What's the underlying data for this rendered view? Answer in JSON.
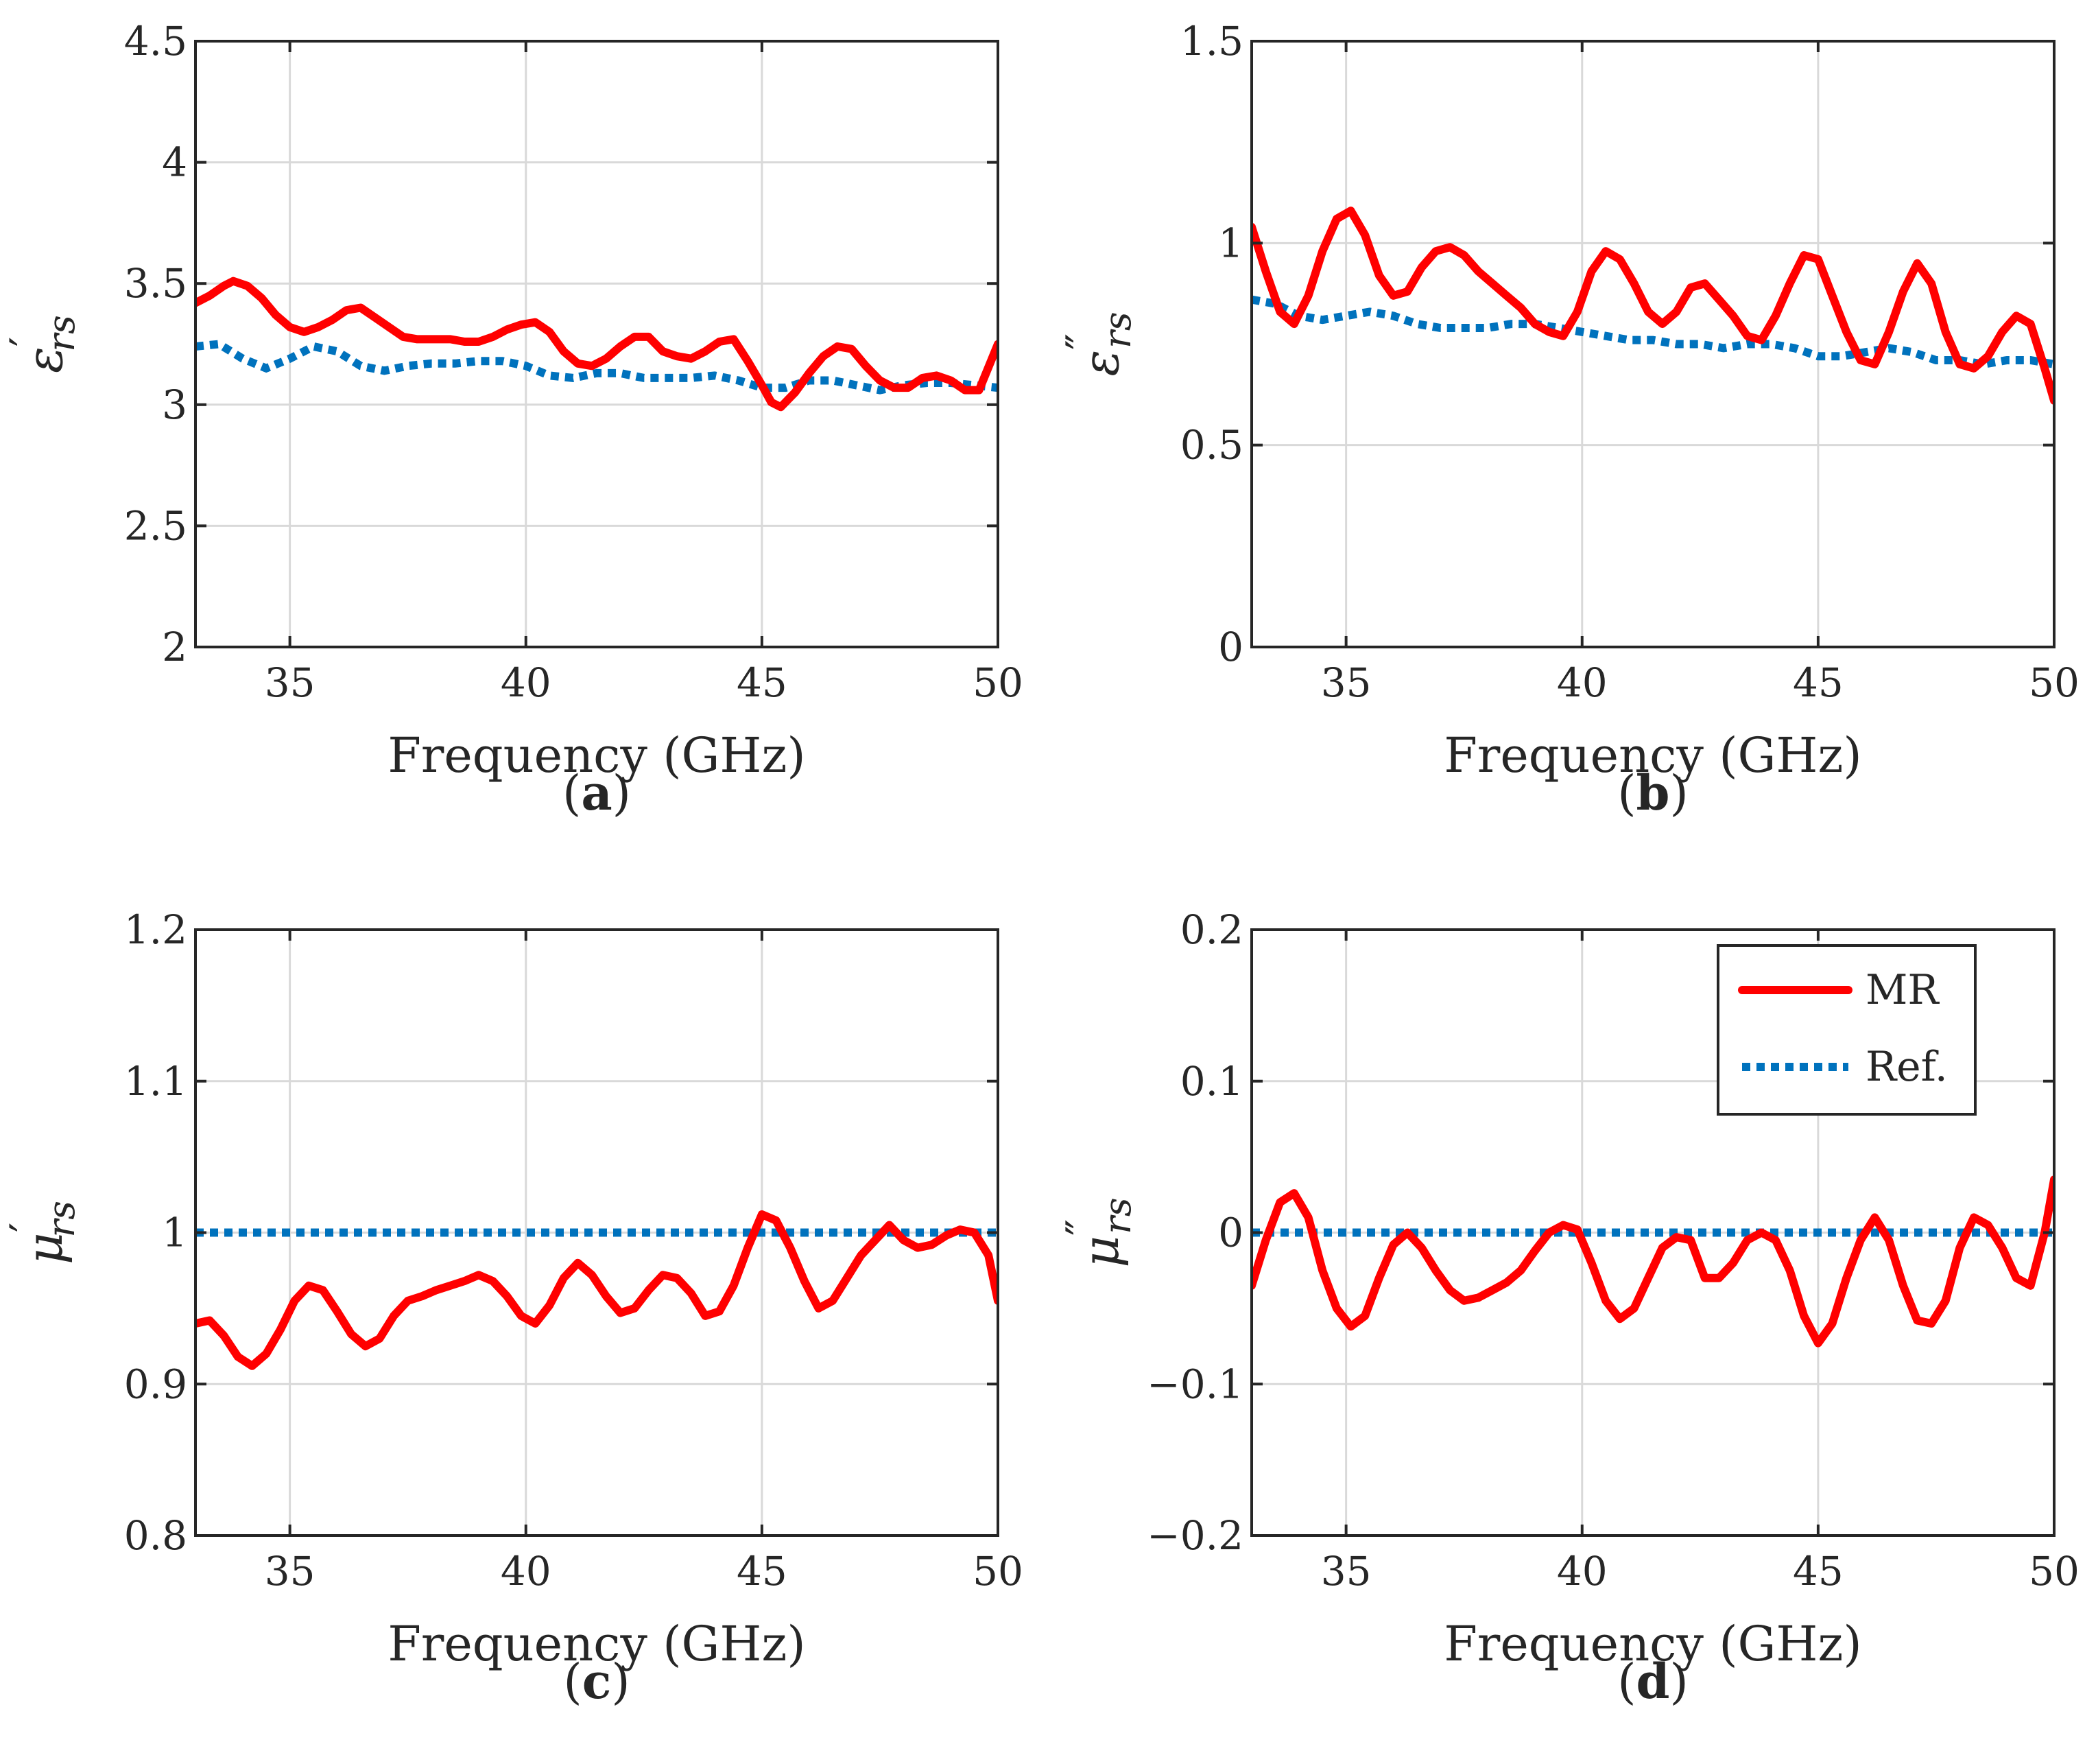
{
  "chart_data": [
    {
      "id": "a",
      "type": "line",
      "panel_label": "a",
      "xlabel": "Frequency (GHz)",
      "ylabel_symbol": "ε",
      "ylabel_prime": "′",
      "ylabel_sub": "rs",
      "xlim": [
        33,
        50
      ],
      "ylim": [
        2,
        4.5
      ],
      "xticks": [
        35,
        40,
        45,
        50
      ],
      "yticks": [
        2,
        2.5,
        3,
        3.5,
        4,
        4.5
      ],
      "ytick_labels": [
        "2",
        "2.5",
        "3",
        "3.5",
        "4",
        "4.5"
      ],
      "grid": true,
      "series": [
        {
          "name": "MR",
          "x": [
            33.0,
            33.3,
            33.6,
            33.8,
            34.1,
            34.4,
            34.7,
            35.0,
            35.3,
            35.6,
            35.9,
            36.2,
            36.5,
            36.8,
            37.1,
            37.4,
            37.7,
            38.0,
            38.4,
            38.7,
            39.0,
            39.3,
            39.6,
            39.9,
            40.2,
            40.5,
            40.8,
            41.1,
            41.4,
            41.7,
            42.0,
            42.3,
            42.6,
            42.9,
            43.2,
            43.5,
            43.8,
            44.1,
            44.4,
            44.7,
            45.0,
            45.2,
            45.4,
            45.7,
            46.0,
            46.3,
            46.6,
            46.9,
            47.2,
            47.5,
            47.8,
            48.1,
            48.4,
            48.7,
            49.0,
            49.3,
            49.6,
            50.0
          ],
          "y": [
            3.42,
            3.45,
            3.49,
            3.51,
            3.49,
            3.44,
            3.37,
            3.32,
            3.3,
            3.32,
            3.35,
            3.39,
            3.4,
            3.36,
            3.32,
            3.28,
            3.27,
            3.27,
            3.27,
            3.26,
            3.26,
            3.28,
            3.31,
            3.33,
            3.34,
            3.3,
            3.22,
            3.17,
            3.16,
            3.19,
            3.24,
            3.28,
            3.28,
            3.22,
            3.2,
            3.19,
            3.22,
            3.26,
            3.27,
            3.18,
            3.08,
            3.01,
            2.99,
            3.05,
            3.13,
            3.2,
            3.24,
            3.23,
            3.16,
            3.1,
            3.07,
            3.07,
            3.11,
            3.12,
            3.1,
            3.06,
            3.06,
            3.25
          ]
        },
        {
          "name": "Ref.",
          "x": [
            33.0,
            33.5,
            34.0,
            34.5,
            35.0,
            35.5,
            36.0,
            36.5,
            37.0,
            37.5,
            38.0,
            38.5,
            39.0,
            39.5,
            40.0,
            40.5,
            41.0,
            41.5,
            42.0,
            42.5,
            43.0,
            43.5,
            44.0,
            44.5,
            45.0,
            45.5,
            46.0,
            46.5,
            47.0,
            47.5,
            48.0,
            48.5,
            49.0,
            49.5,
            50.0
          ],
          "y": [
            3.24,
            3.25,
            3.19,
            3.15,
            3.19,
            3.24,
            3.22,
            3.16,
            3.14,
            3.16,
            3.17,
            3.17,
            3.18,
            3.18,
            3.16,
            3.12,
            3.11,
            3.13,
            3.13,
            3.11,
            3.11,
            3.11,
            3.12,
            3.1,
            3.07,
            3.07,
            3.1,
            3.1,
            3.08,
            3.06,
            3.08,
            3.09,
            3.09,
            3.08,
            3.07
          ]
        }
      ]
    },
    {
      "id": "b",
      "type": "line",
      "panel_label": "b",
      "xlabel": "Frequency (GHz)",
      "ylabel_symbol": "ε",
      "ylabel_prime": "″",
      "ylabel_sub": "rs",
      "xlim": [
        33,
        50
      ],
      "ylim": [
        0,
        1.5
      ],
      "xticks": [
        35,
        40,
        45,
        50
      ],
      "yticks": [
        0,
        0.5,
        1,
        1.5
      ],
      "ytick_labels": [
        "0",
        "0.5",
        "1",
        "1.5"
      ],
      "grid": true,
      "series": [
        {
          "name": "MR",
          "x": [
            33.0,
            33.3,
            33.6,
            33.9,
            34.2,
            34.5,
            34.8,
            35.1,
            35.4,
            35.7,
            36.0,
            36.3,
            36.6,
            36.9,
            37.2,
            37.5,
            37.8,
            38.1,
            38.4,
            38.7,
            39.0,
            39.3,
            39.6,
            39.9,
            40.2,
            40.5,
            40.8,
            41.1,
            41.4,
            41.7,
            42.0,
            42.3,
            42.6,
            42.9,
            43.2,
            43.5,
            43.8,
            44.1,
            44.4,
            44.7,
            45.0,
            45.3,
            45.6,
            45.9,
            46.2,
            46.5,
            46.8,
            47.1,
            47.4,
            47.7,
            48.0,
            48.3,
            48.6,
            48.9,
            49.2,
            49.5,
            49.8,
            50.0
          ],
          "y": [
            1.04,
            0.93,
            0.83,
            0.8,
            0.87,
            0.98,
            1.06,
            1.08,
            1.02,
            0.92,
            0.87,
            0.88,
            0.94,
            0.98,
            0.99,
            0.97,
            0.93,
            0.9,
            0.87,
            0.84,
            0.8,
            0.78,
            0.77,
            0.83,
            0.93,
            0.98,
            0.96,
            0.9,
            0.83,
            0.8,
            0.83,
            0.89,
            0.9,
            0.86,
            0.82,
            0.77,
            0.76,
            0.82,
            0.9,
            0.97,
            0.96,
            0.87,
            0.78,
            0.71,
            0.7,
            0.78,
            0.88,
            0.95,
            0.9,
            0.78,
            0.7,
            0.69,
            0.72,
            0.78,
            0.82,
            0.8,
            0.69,
            0.61
          ]
        },
        {
          "name": "Ref.",
          "x": [
            33.0,
            33.5,
            34.0,
            34.5,
            35.0,
            35.5,
            36.0,
            36.5,
            37.0,
            37.5,
            38.0,
            38.5,
            39.0,
            39.5,
            40.0,
            40.5,
            41.0,
            41.5,
            42.0,
            42.5,
            43.0,
            43.5,
            44.0,
            44.5,
            45.0,
            45.5,
            46.0,
            46.5,
            47.0,
            47.5,
            48.0,
            48.5,
            49.0,
            49.5,
            50.0
          ],
          "y": [
            0.86,
            0.85,
            0.82,
            0.81,
            0.82,
            0.83,
            0.82,
            0.8,
            0.79,
            0.79,
            0.79,
            0.8,
            0.8,
            0.79,
            0.78,
            0.77,
            0.76,
            0.76,
            0.75,
            0.75,
            0.74,
            0.75,
            0.75,
            0.74,
            0.72,
            0.72,
            0.73,
            0.74,
            0.73,
            0.71,
            0.71,
            0.7,
            0.71,
            0.71,
            0.7
          ]
        }
      ]
    },
    {
      "id": "c",
      "type": "line",
      "panel_label": "c",
      "xlabel": "Frequency (GHz)",
      "ylabel_symbol": "μ",
      "ylabel_prime": "′",
      "ylabel_sub": "rs",
      "xlim": [
        33,
        50
      ],
      "ylim": [
        0.8,
        1.2
      ],
      "xticks": [
        35,
        40,
        45,
        50
      ],
      "yticks": [
        0.8,
        0.9,
        1,
        1.1,
        1.2
      ],
      "ytick_labels": [
        "0.8",
        "0.9",
        "1",
        "1.1",
        "1.2"
      ],
      "grid": true,
      "series": [
        {
          "name": "MR",
          "x": [
            33.0,
            33.3,
            33.6,
            33.9,
            34.2,
            34.5,
            34.8,
            35.1,
            35.4,
            35.7,
            36.0,
            36.3,
            36.6,
            36.9,
            37.2,
            37.5,
            37.8,
            38.1,
            38.4,
            38.7,
            39.0,
            39.3,
            39.6,
            39.9,
            40.2,
            40.5,
            40.8,
            41.1,
            41.4,
            41.7,
            42.0,
            42.3,
            42.6,
            42.9,
            43.2,
            43.5,
            43.8,
            44.1,
            44.4,
            44.7,
            45.0,
            45.3,
            45.6,
            45.9,
            46.2,
            46.5,
            46.8,
            47.1,
            47.4,
            47.7,
            48.0,
            48.3,
            48.6,
            48.9,
            49.2,
            49.5,
            49.8,
            50.0
          ],
          "y": [
            0.94,
            0.942,
            0.932,
            0.918,
            0.912,
            0.92,
            0.936,
            0.955,
            0.965,
            0.962,
            0.948,
            0.933,
            0.925,
            0.93,
            0.945,
            0.955,
            0.958,
            0.962,
            0.965,
            0.968,
            0.972,
            0.968,
            0.958,
            0.945,
            0.94,
            0.952,
            0.97,
            0.98,
            0.972,
            0.958,
            0.947,
            0.95,
            0.962,
            0.972,
            0.97,
            0.96,
            0.945,
            0.948,
            0.965,
            0.99,
            1.012,
            1.008,
            0.99,
            0.968,
            0.95,
            0.955,
            0.97,
            0.985,
            0.995,
            1.005,
            0.995,
            0.99,
            0.992,
            0.998,
            1.002,
            1.0,
            0.985,
            0.955
          ]
        },
        {
          "name": "Ref.",
          "x": [
            33.0,
            50.0
          ],
          "y": [
            1.0,
            1.0
          ]
        }
      ]
    },
    {
      "id": "d",
      "type": "line",
      "panel_label": "d",
      "xlabel": "Frequency (GHz)",
      "ylabel_symbol": "μ",
      "ylabel_prime": "″",
      "ylabel_sub": "rs",
      "xlim": [
        33,
        50
      ],
      "ylim": [
        -0.2,
        0.2
      ],
      "xticks": [
        35,
        40,
        45,
        50
      ],
      "yticks": [
        -0.2,
        -0.1,
        0,
        0.1,
        0.2
      ],
      "ytick_labels": [
        "−0.2",
        "−0.1",
        "0",
        "0.1",
        "0.2"
      ],
      "grid": true,
      "legend": {
        "location": "top-right",
        "entries": [
          "MR",
          "Ref."
        ]
      },
      "series": [
        {
          "name": "MR",
          "x": [
            33.0,
            33.3,
            33.6,
            33.9,
            34.2,
            34.5,
            34.8,
            35.1,
            35.4,
            35.7,
            36.0,
            36.3,
            36.6,
            36.9,
            37.2,
            37.5,
            37.8,
            38.1,
            38.4,
            38.7,
            39.0,
            39.3,
            39.6,
            39.9,
            40.2,
            40.5,
            40.8,
            41.1,
            41.4,
            41.7,
            42.0,
            42.3,
            42.6,
            42.9,
            43.2,
            43.5,
            43.8,
            44.1,
            44.4,
            44.7,
            45.0,
            45.3,
            45.6,
            45.9,
            46.2,
            46.5,
            46.8,
            47.1,
            47.4,
            47.7,
            48.0,
            48.3,
            48.6,
            48.9,
            49.2,
            49.5,
            49.8,
            50.0
          ],
          "y": [
            -0.035,
            -0.005,
            0.02,
            0.026,
            0.01,
            -0.025,
            -0.05,
            -0.062,
            -0.055,
            -0.03,
            -0.008,
            0.0,
            -0.01,
            -0.025,
            -0.038,
            -0.045,
            -0.043,
            -0.038,
            -0.033,
            -0.025,
            -0.012,
            0.0,
            0.005,
            0.002,
            -0.02,
            -0.045,
            -0.057,
            -0.05,
            -0.03,
            -0.01,
            -0.003,
            -0.005,
            -0.03,
            -0.03,
            -0.02,
            -0.005,
            0.0,
            -0.005,
            -0.025,
            -0.055,
            -0.073,
            -0.06,
            -0.03,
            -0.005,
            0.01,
            -0.005,
            -0.035,
            -0.058,
            -0.06,
            -0.045,
            -0.01,
            0.01,
            0.005,
            -0.01,
            -0.03,
            -0.035,
            0.0,
            0.035
          ]
        },
        {
          "name": "Ref.",
          "x": [
            33.0,
            50.0
          ],
          "y": [
            0.0,
            0.0
          ]
        }
      ]
    }
  ],
  "legend_entries": [
    "MR",
    "Ref."
  ],
  "colors": {
    "mr": "#ff0000",
    "ref": "#0072bd"
  }
}
